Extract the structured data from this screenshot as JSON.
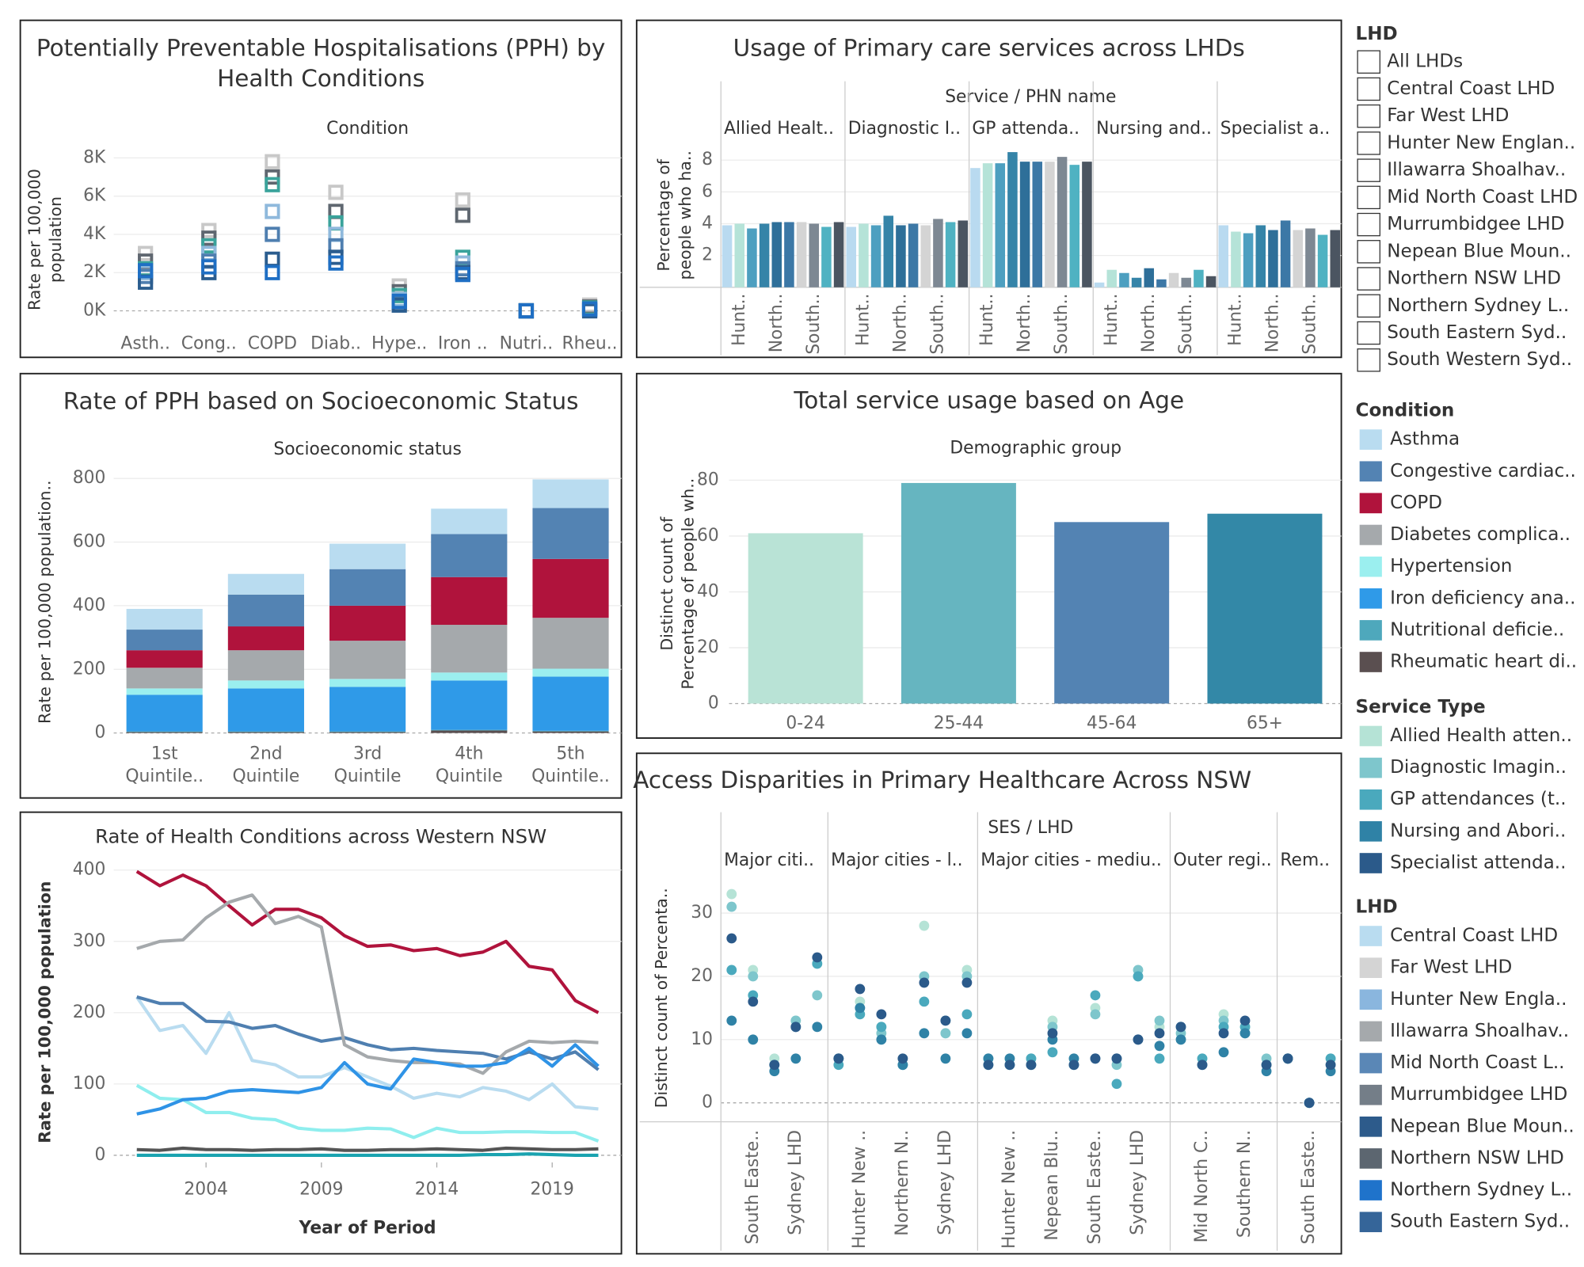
{
  "chart_data": [
    {
      "type": "strip",
      "title": "Potentially Preventable Hospitalisations (PPH) by Health Conditions",
      "header": "Condition",
      "y_label": "Rate per 100,000 population",
      "categories": [
        "Asth..",
        "Cong..",
        "COPD",
        "Diab..",
        "Hype..",
        "Iron ..",
        "Nutri..",
        "Rheu.."
      ],
      "series": [
        {
          "color": "#c8c8c8",
          "values": [
            3000,
            4200,
            7800,
            6200,
            1300,
            5800,
            0,
            300
          ]
        },
        {
          "color": "#5f6770",
          "values": [
            2600,
            3800,
            7000,
            5200,
            1000,
            5000,
            0,
            200
          ]
        },
        {
          "color": "#3aa39b",
          "values": [
            2200,
            3400,
            6600,
            4600,
            800,
            2800,
            0,
            150
          ]
        },
        {
          "color": "#8fb9dc",
          "values": [
            2000,
            3000,
            5200,
            4000,
            600,
            2500,
            0,
            100
          ]
        },
        {
          "color": "#4f7fb0",
          "values": [
            1800,
            2600,
            4000,
            3400,
            400,
            2200,
            0,
            50
          ]
        },
        {
          "color": "#2b5d8f",
          "values": [
            1500,
            2000,
            2700,
            2800,
            300,
            2000,
            0,
            0
          ]
        },
        {
          "color": "#1f6fc4",
          "values": [
            2100,
            2300,
            2000,
            2500,
            500,
            1900,
            0,
            100
          ]
        }
      ],
      "ylim": [
        -1000,
        8400
      ],
      "yticks": [
        {
          "value": 0,
          "label": "0K"
        },
        {
          "value": 2000,
          "label": "2K"
        },
        {
          "value": 4000,
          "label": "4K"
        },
        {
          "value": 6000,
          "label": "6K"
        },
        {
          "value": 8000,
          "label": "8K"
        }
      ],
      "grid": true
    },
    {
      "type": "panel_bar",
      "title": "Usage of Primary care services across LHDs",
      "header": "Service / PHN name",
      "y_label": "Percentage of people who ha..",
      "colors": [
        "#b9daf0",
        "#b5e3d8",
        "#4d9fc0",
        "#3584a8",
        "#2e6f99",
        "#3c78a6",
        "#d4d4d4",
        "#7d8893",
        "#4fb2c2",
        "#4b5561"
      ],
      "panels": [
        {
          "name": "Allied Healt..",
          "categories": [
            null,
            "Hunt..",
            null,
            null,
            "North..",
            null,
            null,
            "South..",
            null,
            null
          ],
          "values": [
            3.9,
            4.0,
            3.7,
            4.0,
            4.1,
            4.1,
            4.1,
            4.0,
            3.8,
            4.1
          ]
        },
        {
          "name": "Diagnostic I..",
          "categories": [
            null,
            "Hunt..",
            null,
            null,
            "North..",
            null,
            null,
            "South..",
            null,
            null
          ],
          "values": [
            3.8,
            4.0,
            3.9,
            4.5,
            3.9,
            4.0,
            3.9,
            4.3,
            4.1,
            4.2
          ]
        },
        {
          "name": "GP attenda..",
          "categories": [
            null,
            "Hunt..",
            null,
            null,
            "North..",
            null,
            null,
            "South..",
            null,
            null
          ],
          "values": [
            7.5,
            7.8,
            7.8,
            8.5,
            7.9,
            7.9,
            7.9,
            8.2,
            7.7,
            7.9
          ]
        },
        {
          "name": "Nursing and..",
          "categories": [
            null,
            "Hunt..",
            null,
            null,
            "North..",
            null,
            null,
            "South..",
            null,
            null
          ],
          "values": [
            0.3,
            1.1,
            0.9,
            0.6,
            1.2,
            0.5,
            0.9,
            0.6,
            1.1,
            0.7
          ]
        },
        {
          "name": "Specialist a..",
          "categories": [
            null,
            "Hunt..",
            null,
            null,
            "North..",
            null,
            null,
            "South..",
            null,
            null
          ],
          "values": [
            3.9,
            3.5,
            3.4,
            3.9,
            3.6,
            4.2,
            3.6,
            3.7,
            3.3,
            3.6
          ]
        }
      ],
      "ylim": [
        0,
        9
      ],
      "yticks": [
        2,
        4,
        6,
        8
      ],
      "grid": true
    },
    {
      "type": "stacked_bar",
      "title": "Rate of PPH based on Socioeconomic Status",
      "header": "Socioeconomic status",
      "y_label": "Rate per 100,000 population..",
      "categories": [
        "1st Quintile..",
        "2nd Quintile",
        "3rd Quintile",
        "4th Quintile",
        "5th Quintile.."
      ],
      "series": [
        {
          "name": "Asthma",
          "color": "#b9dcf0",
          "values": [
            65,
            65,
            80,
            80,
            90
          ]
        },
        {
          "name": "Congestive cardiac..",
          "color": "#5383b3",
          "values": [
            65,
            100,
            115,
            135,
            160
          ]
        },
        {
          "name": "COPD",
          "color": "#b0133c",
          "values": [
            55,
            75,
            110,
            150,
            185
          ]
        },
        {
          "name": "Diabetes complica..",
          "color": "#a5a9ac",
          "values": [
            65,
            95,
            120,
            150,
            160
          ]
        },
        {
          "name": "Hypertension",
          "color": "#9befef",
          "values": [
            20,
            25,
            25,
            25,
            25
          ]
        },
        {
          "name": "Iron deficiency ana..",
          "color": "#2f9ae8",
          "values": [
            115,
            135,
            140,
            155,
            170
          ]
        },
        {
          "name": "Nutritional deficie..",
          "color": "#4ea8bc",
          "values": [
            2,
            2,
            2,
            2,
            2
          ]
        },
        {
          "name": "Rheumatic heart di..",
          "color": "#5a4f50",
          "values": [
            3,
            3,
            3,
            8,
            5
          ]
        }
      ],
      "ylim": [
        0,
        820
      ],
      "yticks": [
        0,
        200,
        400,
        600,
        800
      ],
      "grid": true
    },
    {
      "type": "line",
      "title": "Rate of Health Conditions across Western NSW",
      "x_label": "Year of Period",
      "y_label": "Rate per 100,000 population",
      "x": [
        2001,
        2002,
        2003,
        2004,
        2005,
        2006,
        2007,
        2008,
        2009,
        2010,
        2011,
        2012,
        2013,
        2014,
        2015,
        2016,
        2017,
        2018,
        2019,
        2020,
        2021
      ],
      "series": [
        {
          "color": "#b9dcf0",
          "values": [
            222,
            175,
            182,
            143,
            200,
            133,
            127,
            110,
            110,
            123,
            110,
            97,
            80,
            87,
            82,
            95,
            90,
            78,
            100,
            68,
            65
          ]
        },
        {
          "color": "#4f7fb0",
          "values": [
            222,
            213,
            213,
            188,
            187,
            178,
            182,
            170,
            160,
            165,
            155,
            148,
            150,
            147,
            145,
            143,
            135,
            145,
            135,
            145,
            120
          ]
        },
        {
          "color": "#b0133c",
          "values": [
            398,
            378,
            393,
            378,
            350,
            323,
            345,
            345,
            333,
            308,
            293,
            295,
            287,
            290,
            280,
            285,
            300,
            265,
            260,
            217,
            200
          ]
        },
        {
          "color": "#a5a9ac",
          "values": [
            290,
            300,
            302,
            333,
            355,
            365,
            325,
            335,
            320,
            155,
            138,
            133,
            130,
            130,
            128,
            115,
            145,
            160,
            158,
            160,
            158
          ]
        },
        {
          "color": "#8feeee",
          "values": [
            98,
            80,
            78,
            60,
            60,
            52,
            50,
            38,
            35,
            35,
            38,
            37,
            25,
            38,
            32,
            32,
            33,
            33,
            32,
            32,
            20
          ]
        },
        {
          "color": "#2f93e6",
          "values": [
            58,
            65,
            78,
            80,
            90,
            92,
            90,
            88,
            95,
            130,
            100,
            93,
            135,
            130,
            125,
            125,
            130,
            150,
            125,
            155,
            125
          ]
        },
        {
          "color": "#1aa3b0",
          "values": [
            0,
            0,
            0,
            0,
            0,
            0,
            0,
            0,
            0,
            0,
            0,
            0,
            0,
            0,
            0,
            1,
            1,
            2,
            1,
            0,
            0
          ]
        },
        {
          "color": "#555555",
          "values": [
            8,
            7,
            10,
            8,
            8,
            7,
            8,
            8,
            9,
            7,
            7,
            8,
            8,
            9,
            8,
            7,
            10,
            9,
            8,
            8,
            9
          ]
        }
      ],
      "xlim": [
        2000,
        2022
      ],
      "xticks": [
        2004,
        2009,
        2014,
        2019
      ],
      "ylim": [
        -10,
        410
      ],
      "yticks": [
        0,
        100,
        200,
        300,
        400
      ],
      "grid": true
    },
    {
      "type": "bar",
      "title": "Total service usage based on Age",
      "header": "Demographic group",
      "y_label": "Distinct count of Percentage of people wh..",
      "categories": [
        "0-24",
        "25-44",
        "45-64",
        "65+"
      ],
      "values": [
        61,
        79,
        65,
        68
      ],
      "colors": [
        "#b9e3d6",
        "#66b5c0",
        "#5383b3",
        "#3388a7"
      ],
      "ylim": [
        0,
        84
      ],
      "yticks": [
        0,
        20,
        40,
        60,
        80
      ],
      "grid": true
    },
    {
      "type": "panel_strip",
      "title": "Access Disparities in Primary Healthcare Across NSW",
      "header": "SES / LHD",
      "y_label": "Distinct count of Percenta..",
      "panels": [
        {
          "name": "Major citi..",
          "categories": [
            null,
            "South Easte..",
            null,
            "Sydney LHD",
            null
          ]
        },
        {
          "name": "Major cities - l..",
          "categories": [
            null,
            "Hunter New ..",
            null,
            "Northern N..",
            null,
            "Sydney LHD",
            null
          ]
        },
        {
          "name": "Major cities - mediu..",
          "categories": [
            null,
            "Hunter New ..",
            null,
            "Nepean Blu..",
            null,
            "South Easte..",
            null,
            "Sydney LHD",
            null
          ]
        },
        {
          "name": "Outer regi..",
          "categories": [
            null,
            "Mid North C..",
            null,
            "Southern N..",
            null
          ]
        },
        {
          "name": "Rem..",
          "categories": [
            null,
            "South Easte..",
            null
          ]
        }
      ],
      "series": [
        {
          "name": "Allied Health atten..",
          "color": "#b5e3d6",
          "values": [
            [
              33,
              21,
              7,
              13,
              22
            ],
            [
              7,
              16,
              12,
              7,
              28,
              11,
              21
            ],
            [
              6,
              7,
              6,
              13,
              7,
              15,
              7,
              20,
              12
            ],
            [
              10,
              7,
              14,
              12,
              6
            ],
            [
              7,
              0,
              7
            ]
          ]
        },
        {
          "name": "Diagnostic Imagin..",
          "color": "#7ec6cc",
          "values": [
            [
              31,
              20,
              6,
              13,
              17
            ],
            [
              7,
              15,
              11,
              6,
              20,
              11,
              20
            ],
            [
              6,
              6,
              7,
              12,
              6,
              14,
              6,
              21,
              13
            ],
            [
              11,
              6,
              13,
              11,
              7
            ],
            [
              7,
              0,
              6
            ]
          ]
        },
        {
          "name": "GP attendances (t..",
          "color": "#4aa9bd",
          "values": [
            [
              21,
              17,
              6,
              12,
              22
            ],
            [
              6,
              14,
              12,
              6,
              16,
              13,
              14
            ],
            [
              7,
              6,
              7,
              8,
              6,
              17,
              3,
              20,
              7
            ],
            [
              12,
              7,
              12,
              12,
              6
            ],
            [
              7,
              0,
              7
            ]
          ]
        },
        {
          "name": "Nursing and Abori..",
          "color": "#2f82a6",
          "values": [
            [
              13,
              10,
              5,
              7,
              12
            ],
            [
              7,
              15,
              10,
              6,
              11,
              7,
              11
            ],
            [
              7,
              7,
              6,
              10,
              7,
              7,
              7,
              10,
              9
            ],
            [
              10,
              6,
              8,
              11,
              5
            ],
            [
              7,
              0,
              5
            ]
          ]
        },
        {
          "name": "Specialist attenda..",
          "color": "#2b5a8a",
          "values": [
            [
              26,
              16,
              6,
              12,
              23
            ],
            [
              7,
              18,
              14,
              7,
              19,
              13,
              19
            ],
            [
              6,
              6,
              6,
              11,
              6,
              7,
              7,
              10,
              11
            ],
            [
              12,
              6,
              11,
              13,
              6
            ],
            [
              7,
              0,
              6
            ]
          ]
        }
      ],
      "ylim": [
        -3,
        36
      ],
      "yticks": [
        0,
        10,
        20,
        30
      ],
      "grid": true
    }
  ],
  "sidebar": {
    "lhd_filter": {
      "title": "LHD",
      "options": [
        "All LHDs",
        "Central Coast LHD",
        "Far West LHD",
        "Hunter New Englan..",
        "Illawarra Shoalhav..",
        "Mid North Coast LHD",
        "Murrumbidgee LHD",
        "Nepean Blue Moun..",
        "Northern NSW LHD",
        "Northern Sydney L..",
        "South Eastern Syd..",
        "South Western Syd.."
      ]
    },
    "condition_legend_title": "Condition",
    "service_legend_title": "Service Type",
    "lhd_legend": {
      "title": "LHD",
      "items": [
        {
          "name": "Central Coast LHD",
          "color": "#b9dcf0"
        },
        {
          "name": "Far West LHD",
          "color": "#d4d4d4"
        },
        {
          "name": "Hunter New Engla..",
          "color": "#8ab6de"
        },
        {
          "name": "Illawarra Shoalhav..",
          "color": "#a5a9ac"
        },
        {
          "name": "Mid North Coast L..",
          "color": "#5a87b6"
        },
        {
          "name": "Murrumbidgee LHD",
          "color": "#747e88"
        },
        {
          "name": "Nepean Blue Moun..",
          "color": "#2d5b8b"
        },
        {
          "name": "Northern NSW LHD",
          "color": "#5c6670"
        },
        {
          "name": "Northern Sydney L..",
          "color": "#1f73cb"
        },
        {
          "name": "South Eastern Syd..",
          "color": "#356599"
        }
      ]
    }
  }
}
